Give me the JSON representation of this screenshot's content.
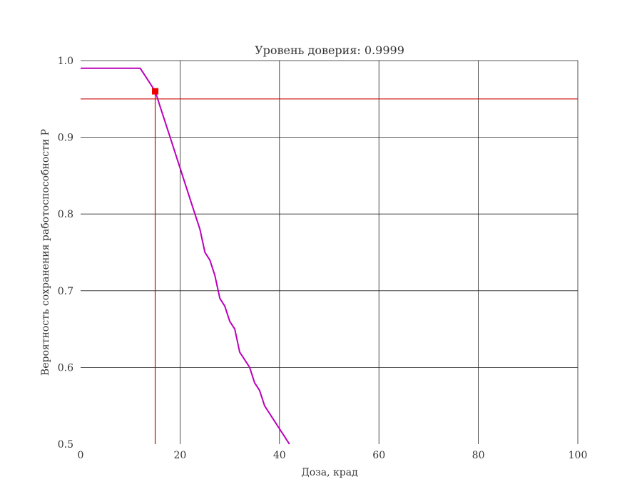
{
  "chart_data": {
    "type": "line",
    "title": "Уровень доверия:  0.9999",
    "xlabel": "Доза, крад",
    "ylabel": "Вероятность сохранения работоспособности P",
    "xlim": [
      0,
      100
    ],
    "ylim": [
      0.5,
      1.0
    ],
    "x_ticks": [
      0,
      20,
      40,
      60,
      80,
      100
    ],
    "x_tick_labels": [
      "0",
      "20",
      "40",
      "60",
      "80",
      "100"
    ],
    "y_ticks": [
      0.5,
      0.6,
      0.7,
      0.8,
      0.9,
      1.0
    ],
    "y_tick_labels": [
      "0.5",
      "0.6",
      "0.7",
      "0.8",
      "0.9",
      "1.0"
    ],
    "grid": true,
    "series": [
      {
        "color": "#bb00bb",
        "x": [
          0,
          12,
          15,
          16,
          18,
          20,
          22,
          24,
          25,
          26,
          27,
          28,
          29,
          30,
          31,
          32,
          33,
          34,
          35,
          36,
          37,
          38,
          39,
          40,
          41,
          42
        ],
        "y": [
          0.99,
          0.99,
          0.96,
          0.94,
          0.9,
          0.86,
          0.82,
          0.78,
          0.75,
          0.74,
          0.72,
          0.69,
          0.68,
          0.66,
          0.65,
          0.62,
          0.61,
          0.6,
          0.58,
          0.57,
          0.55,
          0.54,
          0.53,
          0.52,
          0.51,
          0.5
        ]
      }
    ],
    "reference_lines": {
      "color": "#cc0000",
      "horizontal_y": 0.95,
      "vertical_x": 15
    },
    "marker": {
      "x": 15,
      "y": 0.96,
      "color": "#ee0000"
    },
    "colors": {
      "grid": "#222222",
      "text": "#333333"
    }
  }
}
